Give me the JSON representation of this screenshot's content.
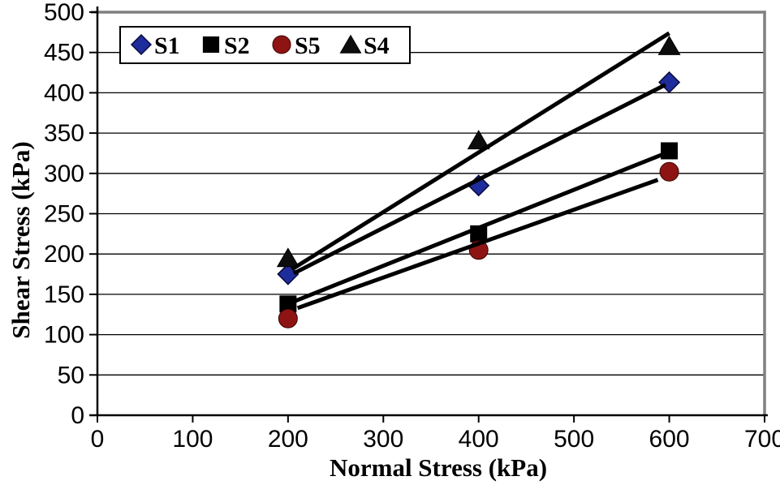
{
  "chart_data": {
    "type": "scatter",
    "title": "",
    "xlabel": "Normal Stress (kPa)",
    "ylabel": "Shear Stress (kPa)",
    "xlim": [
      0,
      700
    ],
    "ylim": [
      0,
      500
    ],
    "xticks": [
      0,
      100,
      200,
      300,
      400,
      500,
      600,
      700
    ],
    "yticks": [
      0,
      50,
      100,
      150,
      200,
      250,
      300,
      350,
      400,
      450,
      500
    ],
    "grid": "horizontal",
    "legend_position": "top-left-inside",
    "x": [
      200,
      400,
      600
    ],
    "series": [
      {
        "name": "S1",
        "marker": "diamond",
        "color": "#1f2c9c",
        "edge_color": "#0a0a3c",
        "values": [
          175,
          285,
          413
        ],
        "trendline": {
          "x1": 206,
          "y1": 176,
          "x2": 596,
          "y2": 410
        }
      },
      {
        "name": "S2",
        "marker": "square",
        "color": "#000000",
        "edge_color": "#000000",
        "values": [
          138,
          225,
          328
        ],
        "trendline": {
          "x1": 206,
          "y1": 141,
          "x2": 594,
          "y2": 324
        }
      },
      {
        "name": "S5",
        "marker": "circle",
        "color": "#8e1414",
        "edge_color": "#3c0000",
        "values": [
          120,
          205,
          302
        ],
        "trendline": {
          "x1": 210,
          "y1": 133,
          "x2": 588,
          "y2": 292
        }
      },
      {
        "name": "S4",
        "marker": "triangle",
        "color": "#0d0d0d",
        "edge_color": "#000000",
        "values": [
          195,
          341,
          458
        ],
        "trendline": {
          "x1": 204,
          "y1": 181,
          "x2": 600,
          "y2": 474
        }
      }
    ],
    "legend_order": [
      "S1",
      "S2",
      "S5",
      "S4"
    ],
    "colors": {
      "background": "#ffffff",
      "gridline": "#000000",
      "frame_gray": "#808080",
      "axis": "#000000",
      "trendline": "#000000",
      "legend_border": "#000000",
      "legend_fill": "#ffffff"
    }
  }
}
